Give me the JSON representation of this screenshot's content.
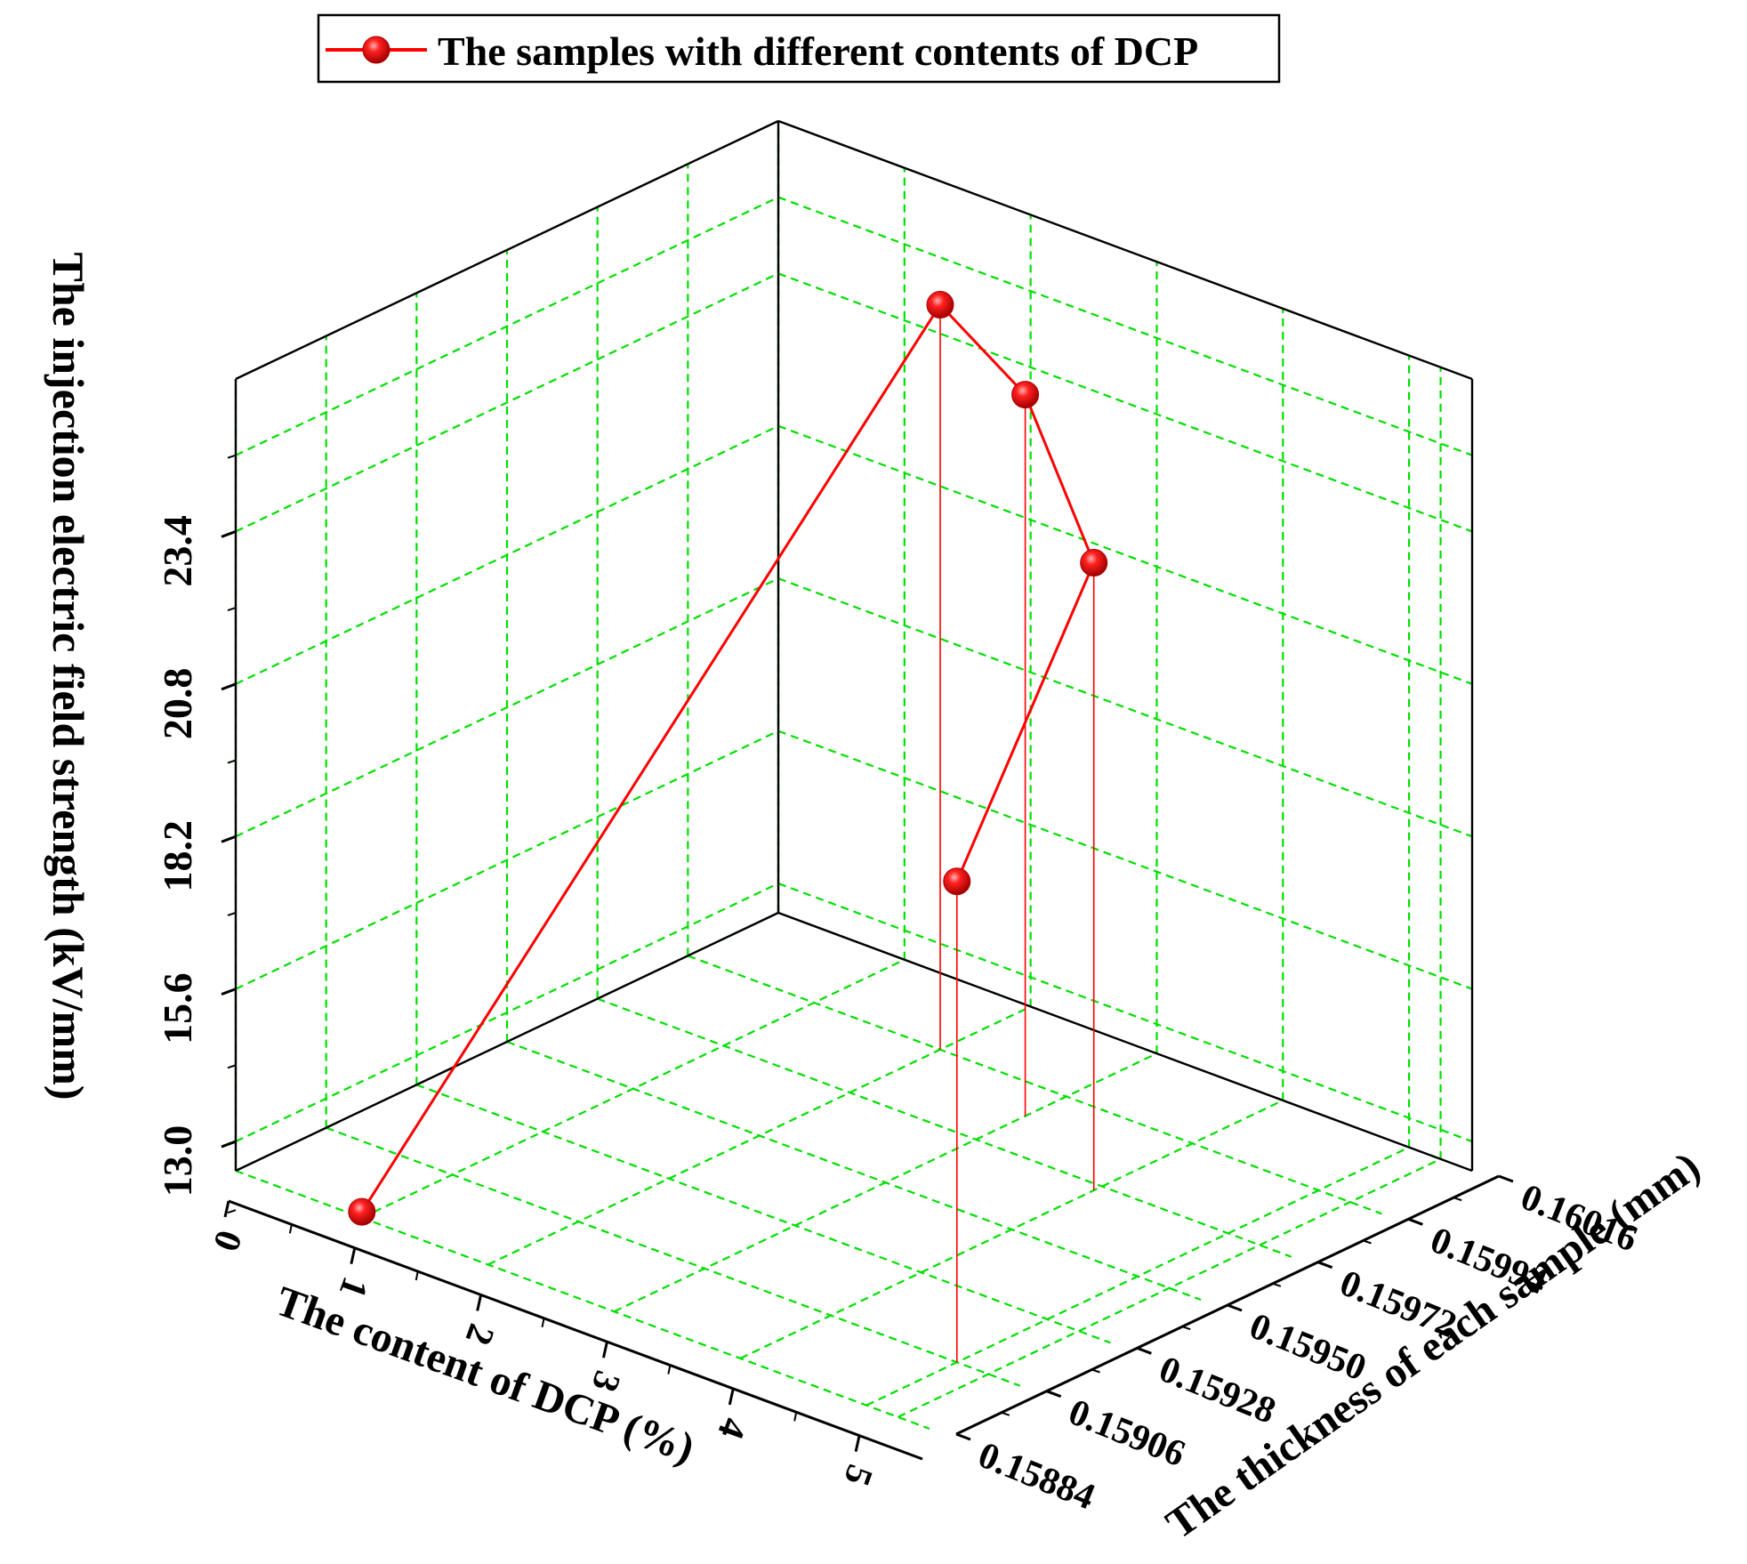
{
  "chart_data": {
    "type": "scatter3d-line",
    "legend": {
      "label": "The samples with different contents of DCP",
      "position": "top-center"
    },
    "axes": {
      "x": {
        "label": "The content of DCP (%)",
        "ticks": [
          "0",
          "1",
          "2",
          "3",
          "4",
          "5"
        ],
        "range": [
          0,
          5.5
        ]
      },
      "y": {
        "label": "The thickness of each sample (mm)",
        "ticks": [
          "0.15884",
          "0.15906",
          "0.15928",
          "0.15950",
          "0.15972",
          "0.15994",
          "0.16016"
        ],
        "range": [
          0.15884,
          0.16016
        ]
      },
      "z": {
        "label": "The injection electric field strength (kV/mm)",
        "ticks": [
          "13.0",
          "15.6",
          "18.2",
          "20.8",
          "23.4"
        ],
        "range": [
          12.5,
          26.0
        ]
      }
    },
    "grid": true,
    "series": [
      {
        "name": "The samples with different contents of DCP",
        "color": "#ff0000",
        "points": [
          {
            "x": 1,
            "y": 0.15884,
            "z": 12.6
          },
          {
            "x": 2,
            "y": 0.15994,
            "z": 25.2
          },
          {
            "x": 3,
            "y": 0.15984,
            "z": 24.8
          },
          {
            "x": 4,
            "y": 0.1597,
            "z": 23.2
          },
          {
            "x": 5,
            "y": 0.15906,
            "z": 20.7
          }
        ]
      }
    ]
  },
  "colors": {
    "grid": "#00e000",
    "series": "#ff0000",
    "axis": "#000000"
  }
}
